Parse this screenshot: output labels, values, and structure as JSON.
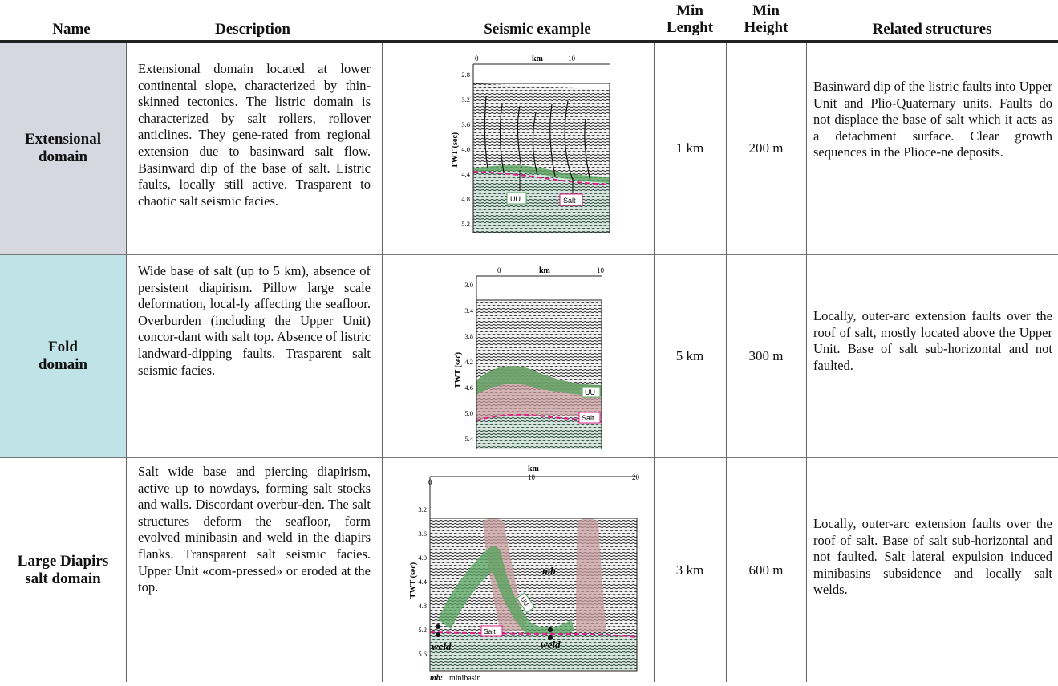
{
  "headers": {
    "name": "Name",
    "description": "Description",
    "seismic": "Seismic example",
    "min_length_1": "Min",
    "min_length_2": "Lenght",
    "min_height_1": "Min",
    "min_height_2": "Height",
    "related": "Related structures"
  },
  "rows": [
    {
      "name_1": "Extensional",
      "name_2": "domain",
      "name_bg": "#d7d7e2",
      "description": "Extensional domain located at lower continental slope, characterized by thin-skinned tectonics. The listric domain is characterized by salt rollers, rollover anticlines. They gene-rated from regional extension due to basinward salt flow. Basinward dip of the base of salt. Listric faults, locally still active. Trasparent to chaotic salt seismic facies.",
      "min_length": "1 km",
      "min_height": "200 m",
      "related": "Basinward dip of the listric faults into Upper Unit and Plio-Quaternary units. Faults do not displace the base of salt which it acts as a detachment surface. Clear growth sequences in the Plioce-ne deposits.",
      "fig": {
        "km_label": "km",
        "x_ticks": [
          "0",
          "10"
        ],
        "y_label": "TWT (sec)",
        "y_ticks": [
          "2.8",
          "3.2",
          "3.6",
          "4.0",
          "4.4",
          "4.8",
          "5.2"
        ],
        "uu_label": "UU",
        "salt_label": "Salt"
      }
    },
    {
      "name_1": "Fold",
      "name_2": "domain",
      "name_bg": "#bfe3e6",
      "description": "Wide base of salt (up to 5 km), absence of persistent diapirism. Pillow large scale deformation, local-ly affecting the seafloor. Overburden (including the Upper Unit) concor-dant with salt top.  Absence of listric landward-dipping faults. Trasparent salt seismic facies.",
      "min_length": "5 km",
      "min_height": "300 m",
      "related": "Locally, outer-arc extension faults over the roof of salt, mostly located above the Upper Unit. Base of salt sub-horizontal and not faulted.",
      "fig": {
        "km_label": "km",
        "x_ticks": [
          "0",
          "10"
        ],
        "y_label": "TWT (sec)",
        "y_ticks": [
          "3.0",
          "3.4",
          "3.8",
          "4.2",
          "4.6",
          "5.0",
          "5.4"
        ],
        "uu_label": "UU",
        "salt_label": "Salt"
      }
    },
    {
      "name_1": "Large Diapirs",
      "name_2": "salt domain",
      "name_bg": "#ffffff",
      "description": "Salt wide base and piercing diapirism, active up to nowdays, forming salt stocks and walls. Discordant overbur-den. The salt structures deform the seafloor, form evolved minibasin and weld in the diapirs flanks. Transparent salt seismic facies. Upper Unit «com-pressed» or eroded at the top.",
      "min_length": "3 km",
      "min_height": "600 m",
      "related": "Locally, outer-arc extension faults over the roof of salt.  Base of salt sub-horizontal and not faulted. Salt lateral expulsion induced minibasins subsidence and locally salt welds.",
      "fig": {
        "km_label": "km",
        "x_ticks": [
          "0",
          "10",
          "20"
        ],
        "y_label": "TWT (sec)",
        "y_ticks": [
          "3.2",
          "3.6",
          "4.0",
          "4.4",
          "4.8",
          "5.2",
          "5.6"
        ],
        "uu_label": "UU",
        "salt_label": "Salt",
        "mb_label": "mb",
        "weld_label": "weld",
        "legend_key": "mb:",
        "legend_text": "minibasin"
      }
    }
  ]
}
